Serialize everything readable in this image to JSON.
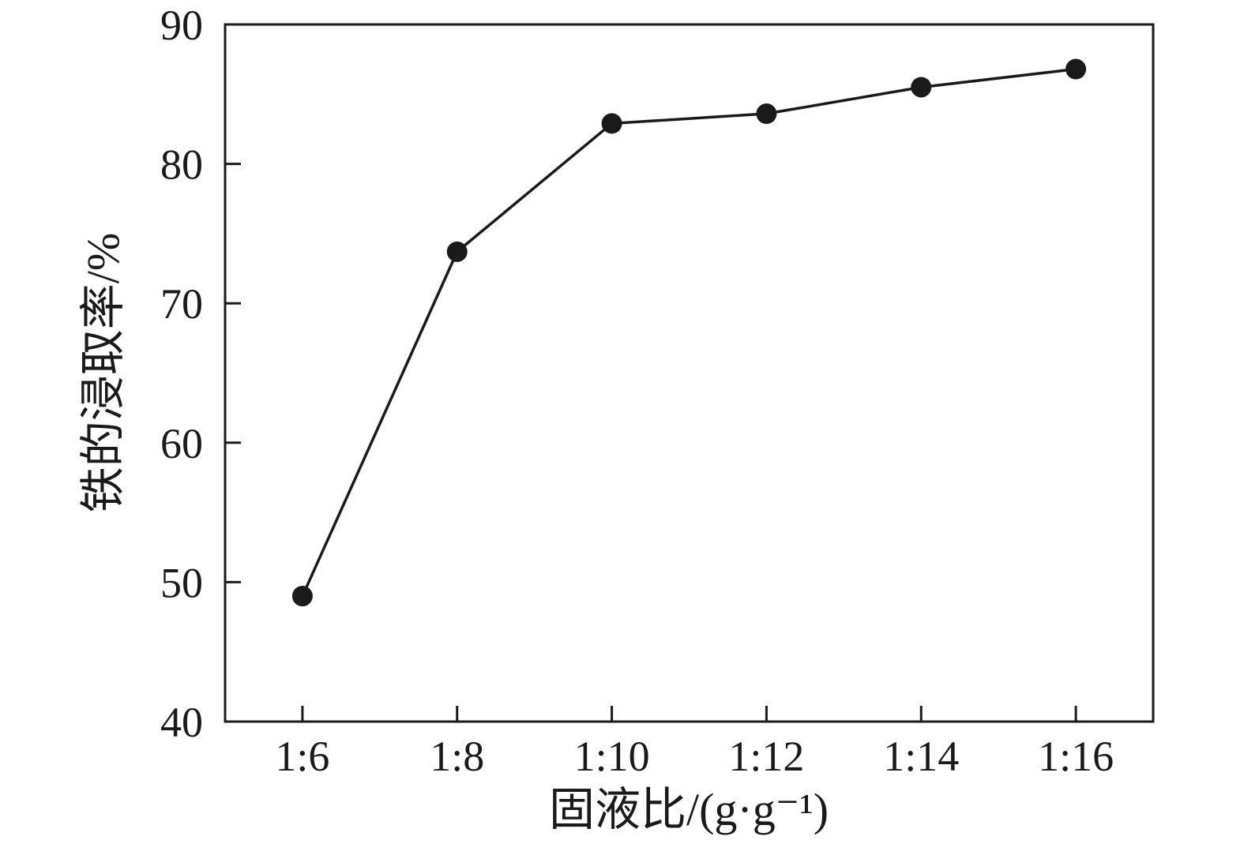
{
  "figure": {
    "background": "#ffffff",
    "axis_color": "#1a1a1a"
  },
  "chart_data": {
    "type": "line",
    "title": "",
    "xlabel": "固液比/(g·g⁻¹)",
    "ylabel": "铁的浸取率/%",
    "categories": [
      "1:6",
      "1:8",
      "1:10",
      "1:12",
      "1:14",
      "1:16"
    ],
    "series": [
      {
        "name": "铁的浸取率",
        "values": [
          49.0,
          73.7,
          82.9,
          83.6,
          85.5,
          86.8
        ]
      }
    ],
    "ylim": [
      40,
      90
    ],
    "yticks": [
      40,
      50,
      60,
      70,
      80,
      90
    ],
    "grid": false,
    "legend": "none",
    "marker": "circle",
    "line_color": "#1a1a1a",
    "marker_color": "#1a1a1a",
    "line_width": 3.5,
    "marker_radius": 13
  }
}
